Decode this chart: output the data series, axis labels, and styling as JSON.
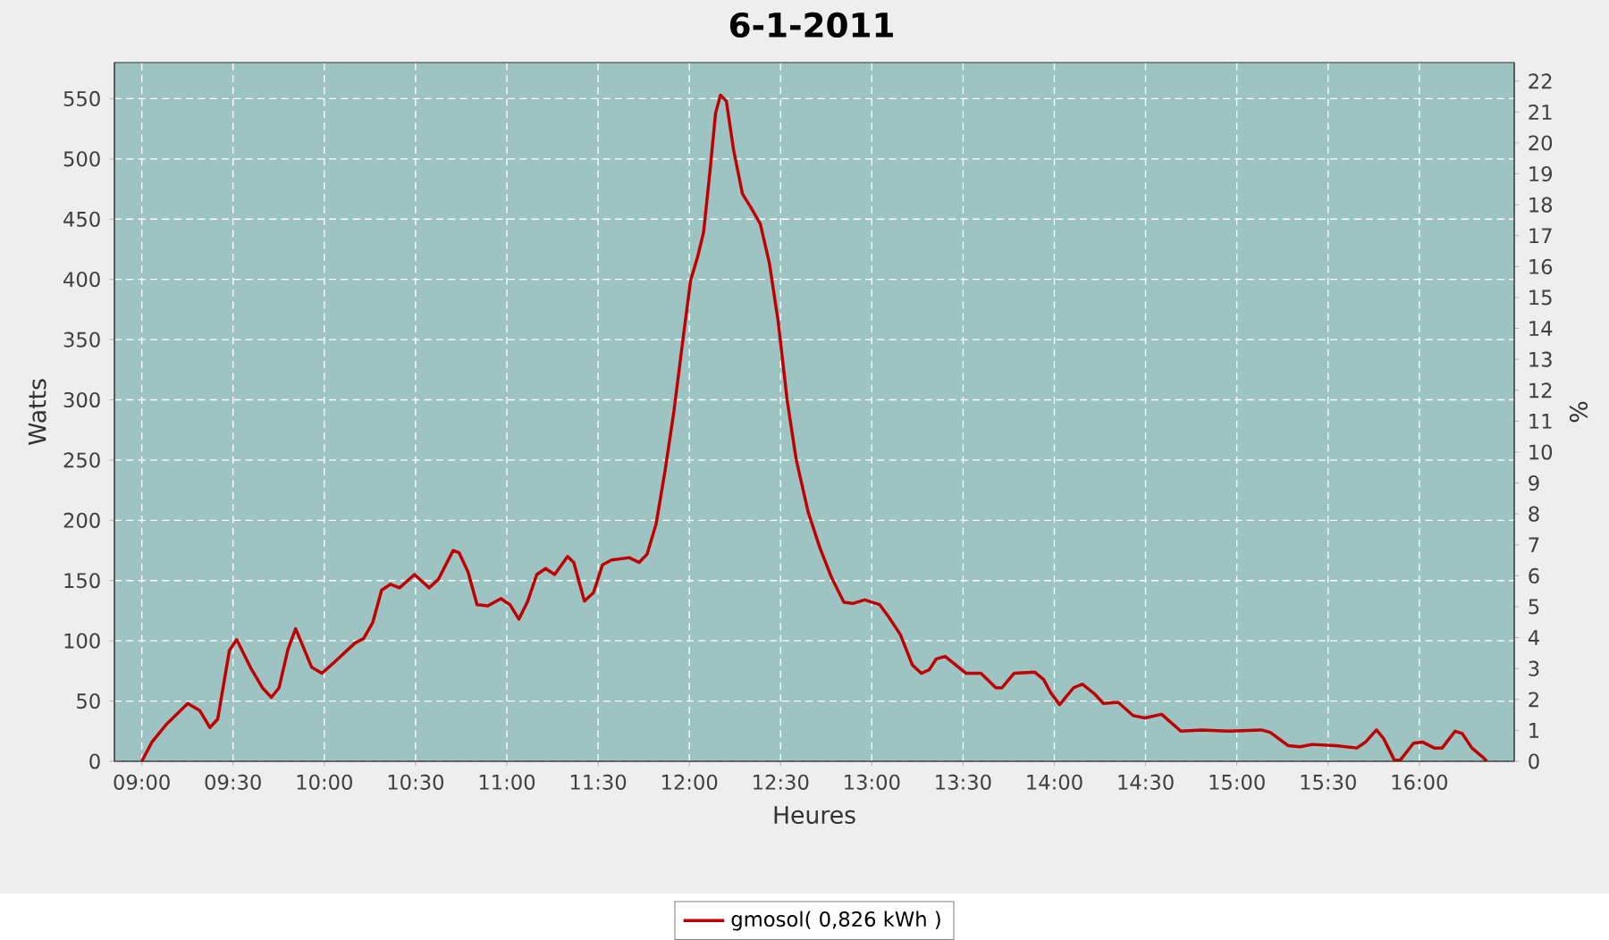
{
  "chart_data": {
    "type": "line",
    "title": "6-1-2011",
    "xlabel": "Heures",
    "ylabel": "Watts",
    "y2label": "%",
    "xlim": [
      8.85,
      16.52
    ],
    "ylim": [
      0,
      580
    ],
    "y2lim": [
      0,
      22.6
    ],
    "xticks": [
      {
        "value": 9,
        "label": "09:00"
      },
      {
        "value": 9.5,
        "label": "09:30"
      },
      {
        "value": 10,
        "label": "10:00"
      },
      {
        "value": 10.5,
        "label": "10:30"
      },
      {
        "value": 11,
        "label": "11:00"
      },
      {
        "value": 11.5,
        "label": "11:30"
      },
      {
        "value": 12,
        "label": "12:00"
      },
      {
        "value": 12.5,
        "label": "12:30"
      },
      {
        "value": 13,
        "label": "13:00"
      },
      {
        "value": 13.5,
        "label": "13:30"
      },
      {
        "value": 14,
        "label": "14:00"
      },
      {
        "value": 14.5,
        "label": "14:30"
      },
      {
        "value": 15,
        "label": "15:00"
      },
      {
        "value": 15.5,
        "label": "15:30"
      },
      {
        "value": 16,
        "label": "16:00"
      }
    ],
    "yticks": [
      0,
      50,
      100,
      150,
      200,
      250,
      300,
      350,
      400,
      450,
      500,
      550
    ],
    "y2ticks": [
      0,
      1,
      2,
      3,
      4,
      5,
      6,
      7,
      8,
      9,
      10,
      11,
      12,
      13,
      14,
      15,
      16,
      17,
      18,
      19,
      20,
      21,
      22
    ],
    "grid": true,
    "legend": "bottom",
    "marker": "none",
    "line_style": "solid",
    "series": [
      {
        "name": "gmosol( 0,826 kWh )",
        "color": "#c00000",
        "x": [
          9.0,
          9.056,
          9.137,
          9.252,
          9.318,
          9.373,
          9.416,
          9.48,
          9.52,
          9.595,
          9.661,
          9.71,
          9.752,
          9.801,
          9.843,
          9.931,
          9.987,
          10.053,
          10.167,
          10.216,
          10.265,
          10.314,
          10.363,
          10.412,
          10.494,
          10.575,
          10.625,
          10.706,
          10.739,
          10.788,
          10.837,
          10.896,
          10.968,
          11.017,
          11.066,
          11.115,
          11.164,
          11.213,
          11.262,
          11.333,
          11.367,
          11.425,
          11.475,
          11.524,
          11.573,
          11.671,
          11.725,
          11.769,
          11.818,
          11.867,
          11.916,
          11.965,
          12.007,
          12.046,
          12.078,
          12.112,
          12.144,
          12.171,
          12.203,
          12.242,
          12.291,
          12.34,
          12.389,
          12.438,
          12.487,
          12.536,
          12.585,
          12.651,
          12.716,
          12.781,
          12.847,
          12.896,
          12.961,
          13.043,
          13.092,
          13.157,
          13.222,
          13.271,
          13.315,
          13.353,
          13.402,
          13.517,
          13.598,
          13.68,
          13.713,
          13.779,
          13.892,
          13.941,
          13.98,
          14.029,
          14.105,
          14.154,
          14.22,
          14.269,
          14.35,
          14.431,
          14.497,
          14.588,
          14.693,
          14.808,
          14.955,
          15.134,
          15.183,
          15.281,
          15.347,
          15.412,
          15.543,
          15.657,
          15.706,
          15.765,
          15.804,
          15.863,
          15.896,
          15.968,
          16.017,
          16.082,
          16.125,
          16.196,
          16.235,
          16.288,
          16.343,
          16.37
        ],
        "values": [
          0,
          16,
          31,
          48,
          42,
          28,
          35,
          92,
          101,
          78,
          61,
          53,
          61,
          93,
          110,
          78,
          73,
          82,
          98,
          102,
          115,
          142,
          147,
          144,
          155,
          144,
          151,
          175,
          173,
          157,
          130,
          129,
          135,
          130,
          118,
          133,
          155,
          160,
          155,
          170,
          165,
          133,
          140,
          163,
          167,
          169,
          165,
          172,
          197,
          241,
          291,
          350,
          399,
          419,
          439,
          488,
          538,
          553,
          548,
          508,
          471,
          459,
          446,
          414,
          365,
          300,
          251,
          207,
          177,
          152,
          132,
          131,
          134,
          130,
          120,
          105,
          80,
          73,
          76,
          85,
          87,
          73,
          73,
          61,
          61,
          73,
          74,
          68,
          57,
          47,
          61,
          64,
          56,
          48,
          49,
          38,
          36,
          39,
          25,
          26,
          25,
          26,
          24,
          13,
          12,
          14,
          13,
          11,
          16,
          26,
          19,
          1,
          1,
          15,
          16,
          11,
          11,
          25,
          23,
          11,
          4,
          0
        ]
      }
    ]
  }
}
